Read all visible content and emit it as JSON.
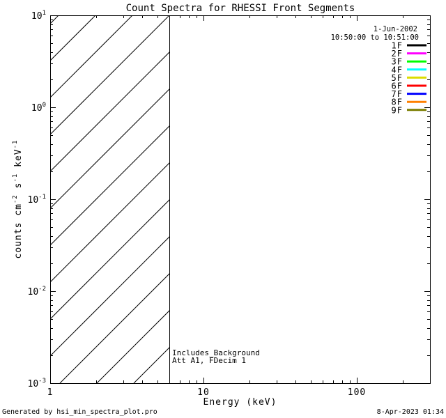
{
  "window": {
    "background": "#FFFFFF",
    "foreground": "#000000"
  },
  "chart_data": {
    "type": "line",
    "title": "Count Spectra for RHESSI Front Segments",
    "xlabel": "Energy (keV)",
    "ylabel_segments": [
      {
        "t": "counts cm",
        "sup": false
      },
      {
        "t": "-2",
        "sup": true
      },
      {
        "t": " s",
        "sup": false
      },
      {
        "t": "-1",
        "sup": true
      },
      {
        "t": " keV",
        "sup": false
      },
      {
        "t": "-1",
        "sup": true
      }
    ],
    "x_scale": "log",
    "y_scale": "log",
    "xlim": [
      1,
      300
    ],
    "ylim": [
      0.001,
      10
    ],
    "x_major_ticks": [
      {
        "value": 1,
        "label": "1"
      },
      {
        "value": 10,
        "label": "10"
      },
      {
        "value": 100,
        "label": "100"
      }
    ],
    "y_major_ticks": [
      {
        "value": 10,
        "mantissa": "10",
        "exponent": "1"
      },
      {
        "value": 1,
        "mantissa": "10",
        "exponent": "0"
      },
      {
        "value": 0.1,
        "mantissa": "10",
        "exponent": "-1"
      },
      {
        "value": 0.01,
        "mantissa": "10",
        "exponent": "-2"
      },
      {
        "value": 0.001,
        "mantissa": "10",
        "exponent": "-3"
      }
    ],
    "grid": false,
    "series": [],
    "hatched_region": {
      "x_from": 1,
      "x_to": 6,
      "pattern": "diagonal-45deg"
    },
    "vertical_boundary_line_x": 6,
    "legend": {
      "position": "top-right-inside",
      "date": "1-Jun-2002",
      "time_range": "10:50:00 to 10:51:00",
      "entries": [
        {
          "label": "1F",
          "color": "#000000"
        },
        {
          "label": "2F",
          "color": "#FF00FF"
        },
        {
          "label": "3F",
          "color": "#00FF00"
        },
        {
          "label": "4F",
          "color": "#00FFFF"
        },
        {
          "label": "5F",
          "color": "#DDDD00"
        },
        {
          "label": "6F",
          "color": "#FF0000"
        },
        {
          "label": "7F",
          "color": "#0000FF"
        },
        {
          "label": "8F",
          "color": "#FF8000"
        },
        {
          "label": "9F",
          "color": "#7A7D00"
        }
      ]
    },
    "annotations": [
      {
        "text": "Includes_Background"
      },
      {
        "text": "Att A1, FDecim 1"
      }
    ]
  },
  "footer": {
    "left": "Generated by hsi_min_spectra_plot.pro",
    "right": "8-Apr-2023 01:34"
  }
}
